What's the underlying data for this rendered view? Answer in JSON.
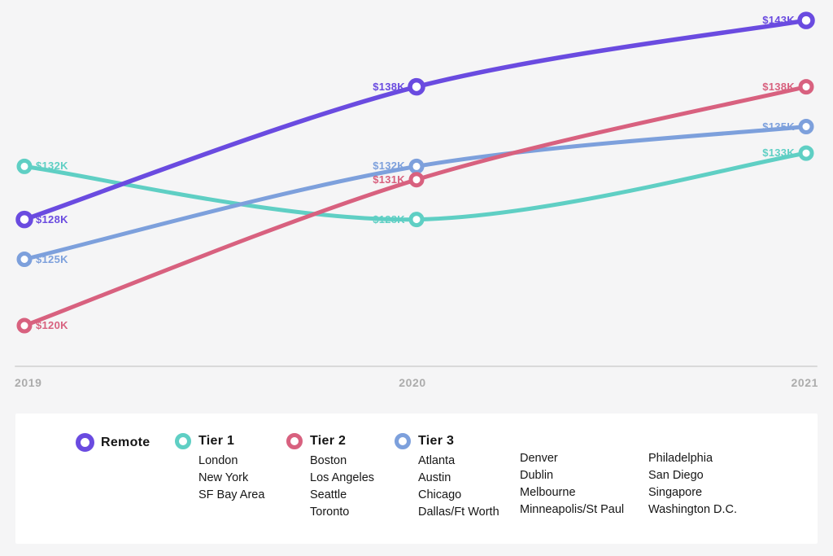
{
  "theme": {
    "background": "#F5F5F6",
    "panel": "#FFFFFF",
    "axis_line": "#D9D9D9",
    "year_label_color": "#ACACAC",
    "text_color": "#161616"
  },
  "chart_data": {
    "type": "line",
    "x": [
      2019,
      2020,
      2021
    ],
    "x_labels": [
      "2019",
      "2020",
      "2021"
    ],
    "unit": "USD thousands",
    "grid": false,
    "legend_position": "bottom",
    "ylim": [
      118,
      146
    ],
    "series": [
      {
        "name": "Tier 1",
        "color": "#5FCFC4",
        "values": [
          132,
          128,
          133
        ],
        "labels": [
          "$132K",
          "$128K",
          "$133K"
        ]
      },
      {
        "name": "Tier 3",
        "color": "#7DA0DC",
        "values": [
          125,
          132,
          135
        ],
        "labels": [
          "$125K",
          "$132K",
          "$135K"
        ]
      },
      {
        "name": "Tier 2",
        "color": "#D8617F",
        "values": [
          120,
          131,
          138
        ],
        "labels": [
          "$120K",
          "$131K",
          "$138K"
        ]
      },
      {
        "name": "Remote",
        "color": "#6A4BE0",
        "values": [
          128,
          138,
          143
        ],
        "labels": [
          "$128K",
          "$138K",
          "$143K"
        ]
      }
    ]
  },
  "legend": {
    "items": [
      {
        "name": "Remote",
        "color": "#6A4BE0",
        "cities": []
      },
      {
        "name": "Tier 1",
        "color": "#5FCFC4",
        "cities": [
          "London",
          "New York",
          "SF Bay Area"
        ]
      },
      {
        "name": "Tier 2",
        "color": "#D8617F",
        "cities": [
          "Boston",
          "Los Angeles",
          "Seattle",
          "Toronto"
        ]
      },
      {
        "name": "Tier 3",
        "color": "#7DA0DC",
        "cities": [
          "Atlanta",
          "Austin",
          "Chicago",
          "Dallas/Ft Worth"
        ],
        "extra_columns": [
          [
            "Denver",
            "Dublin",
            "Melbourne",
            "Minneapolis/St Paul"
          ],
          [
            "Philadelphia",
            "San Diego",
            "Singapore",
            "Washington D.C."
          ]
        ]
      }
    ]
  }
}
